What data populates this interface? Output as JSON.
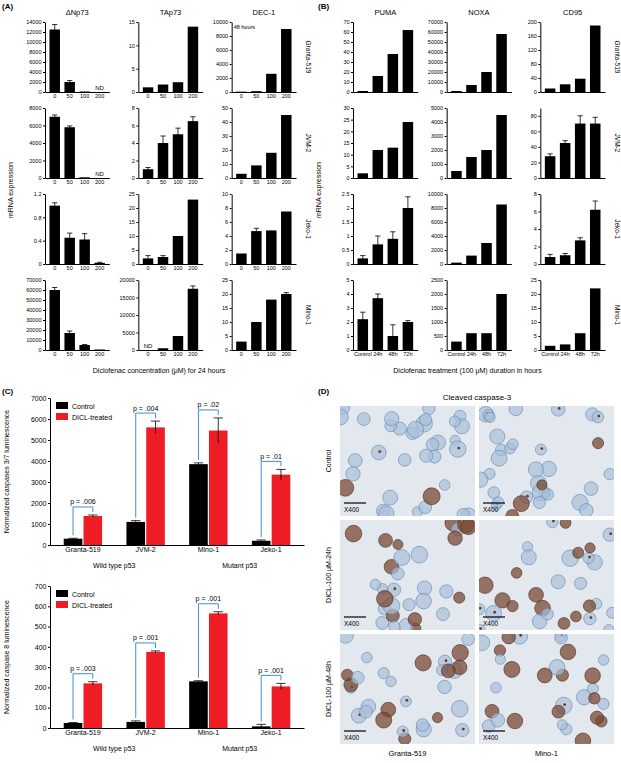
{
  "panel_labels": [
    "(A)",
    "(B)",
    "(C)",
    "(D)"
  ],
  "chart_data": [
    {
      "type": "bar_grid",
      "y_label": "mRNA expression",
      "x_label": "Diclofenac concentration (μM) for 24 hours",
      "categories": [
        "0",
        "50",
        "100",
        "200"
      ],
      "genes": [
        "ΔNp73",
        "TAp73",
        "DEC-1"
      ],
      "cell_lines": [
        "Granta-519",
        "JVM-2",
        "Jeko-1",
        "Mino-1"
      ],
      "color": "#000000",
      "charts": [
        {
          "values": [
            12500,
            2000,
            100,
            null
          ],
          "errors": [
            1000,
            300,
            null,
            null
          ],
          "ylim": [
            0,
            14000
          ],
          "yticks": [
            0,
            2000,
            4000,
            6000,
            8000,
            10000,
            12000,
            14000
          ],
          "annotations": [
            {
              "category": "200",
              "text": "ND"
            }
          ]
        },
        {
          "values": [
            1,
            1.6,
            2.1,
            14
          ],
          "ylim": [
            0,
            15
          ],
          "yticks": [
            0,
            5,
            10,
            15
          ]
        },
        {
          "values": [
            50,
            120,
            2600,
            9000
          ],
          "ylim": [
            0,
            10000
          ],
          "yticks": [
            0,
            2000,
            4000,
            6000,
            8000,
            10000
          ],
          "annotations": [
            {
              "text": "48 hours"
            }
          ]
        },
        {
          "values": [
            7000,
            5800,
            80,
            null
          ],
          "errors": [
            200,
            150,
            null,
            null
          ],
          "ylim": [
            0,
            8000
          ],
          "yticks": [
            0,
            2000,
            4000,
            6000,
            8000
          ],
          "annotations": [
            {
              "category": "200",
              "text": "ND"
            }
          ]
        },
        {
          "values": [
            1,
            4,
            5,
            6.5
          ],
          "errors": [
            0.2,
            0.8,
            0.7,
            0.5
          ],
          "ylim": [
            0,
            8
          ],
          "yticks": [
            0,
            2,
            4,
            6,
            8
          ]
        },
        {
          "values": [
            3,
            9,
            18,
            45
          ],
          "ylim": [
            0,
            50
          ],
          "yticks": [
            0,
            10,
            20,
            30,
            40,
            50
          ]
        },
        {
          "values": [
            1.0,
            0.45,
            0.42,
            0.02
          ],
          "errors": [
            0.05,
            0.08,
            0.1,
            0.01
          ],
          "ylim": [
            0,
            1.2
          ],
          "yticks": [
            0,
            0.4,
            0.8,
            1.2
          ]
        },
        {
          "values": [
            2,
            2.5,
            10,
            23
          ],
          "errors": [
            1,
            0.5,
            null,
            null
          ],
          "ylim": [
            0,
            25
          ],
          "yticks": [
            0,
            5,
            10,
            15,
            20,
            25
          ]
        },
        {
          "values": [
            1.5,
            4.7,
            4.8,
            7.5
          ],
          "errors": [
            null,
            0.4,
            null,
            null
          ],
          "ylim": [
            0,
            10
          ],
          "yticks": [
            0,
            2,
            4,
            6,
            8,
            10
          ]
        },
        {
          "values": [
            60000,
            17000,
            5000,
            500
          ],
          "errors": [
            2500,
            2000,
            500,
            null
          ],
          "ylim": [
            0,
            70000
          ],
          "yticks": [
            0,
            10000,
            20000,
            30000,
            40000,
            50000,
            60000,
            70000
          ]
        },
        {
          "values": [
            null,
            500,
            4000,
            17500
          ],
          "errors": [
            null,
            null,
            null,
            800
          ],
          "ylim": [
            0,
            20000
          ],
          "yticks": [
            0,
            5000,
            10000,
            15000,
            20000
          ],
          "annotations": [
            {
              "category": "0",
              "text": "ND"
            }
          ]
        },
        {
          "values": [
            3,
            10,
            18,
            20
          ],
          "errors": [
            null,
            null,
            null,
            0.5
          ],
          "ylim": [
            0,
            25
          ],
          "yticks": [
            0,
            5,
            10,
            15,
            20,
            25
          ]
        }
      ]
    },
    {
      "type": "bar_grid",
      "y_label": "mRNA expression",
      "x_label": "Diclofenac treatment (100 μM) duration in hours",
      "categories": [
        "Control",
        "24h",
        "48h",
        "72h"
      ],
      "genes": [
        "PUMA",
        "NOXA",
        "CD95"
      ],
      "cell_lines": [
        "Granta-519",
        "JVM-2",
        "Jeko-1",
        "Mino-1"
      ],
      "color": "#000000",
      "charts": [
        {
          "values": [
            1,
            16,
            38,
            62
          ],
          "ylim": [
            0,
            70
          ],
          "yticks": [
            0,
            10,
            20,
            30,
            40,
            50,
            60,
            70
          ],
          "tick_labels": "y"
        },
        {
          "values": [
            1000,
            7000,
            20000,
            58000
          ],
          "ylim": [
            0,
            70000
          ],
          "yticks": [
            0,
            10000,
            20000,
            30000,
            40000,
            50000,
            60000,
            70000
          ],
          "tick_labels": "y"
        },
        {
          "values": [
            10,
            22,
            38,
            190
          ],
          "ylim": [
            0,
            200
          ],
          "yticks": [
            0,
            40,
            80,
            120,
            160,
            200
          ],
          "tick_labels": "y"
        },
        {
          "values": [
            2,
            12,
            13,
            24
          ],
          "ylim": [
            0,
            30
          ],
          "yticks": [
            0,
            5,
            10,
            15,
            20,
            25,
            30
          ],
          "tick_labels": "y"
        },
        {
          "values": [
            500,
            1500,
            2000,
            4500
          ],
          "ylim": [
            0,
            5000
          ],
          "yticks": [
            0,
            1000,
            2000,
            3000,
            4000,
            5000
          ],
          "tick_labels": "y"
        },
        {
          "values": [
            28,
            45,
            70,
            70
          ],
          "errors": [
            3,
            3,
            10,
            8
          ],
          "ylim": [
            0,
            90
          ],
          "yticks": [
            0,
            20,
            40,
            60,
            80
          ],
          "tick_labels": "y"
        },
        {
          "values": [
            0.2,
            0.7,
            0.9,
            2.0
          ],
          "errors": [
            0.1,
            0.3,
            0.25,
            0.4
          ],
          "ylim": [
            0,
            2.5
          ],
          "yticks": [
            0,
            0.5,
            1,
            1.5,
            2,
            2.5
          ],
          "tick_labels": "y"
        },
        {
          "values": [
            200,
            1200,
            3000,
            8500
          ],
          "ylim": [
            0,
            10000
          ],
          "yticks": [
            0,
            2000,
            4000,
            6000,
            8000,
            10000
          ],
          "tick_labels": "y"
        },
        {
          "values": [
            0.8,
            1.0,
            2.7,
            6.2
          ],
          "errors": [
            0.3,
            0.2,
            0.3,
            1.0
          ],
          "ylim": [
            0,
            8
          ],
          "yticks": [
            0,
            2,
            4,
            6,
            8
          ],
          "tick_labels": "y"
        },
        {
          "values": [
            2.2,
            3.7,
            1.0,
            2.0
          ],
          "errors": [
            0.5,
            0.3,
            0.8,
            0.1
          ],
          "ylim": [
            0,
            5
          ],
          "yticks": [
            0,
            1,
            2,
            3,
            4,
            5
          ]
        },
        {
          "values": [
            300,
            600,
            600,
            2000
          ],
          "ylim": [
            0,
            2500
          ],
          "yticks": [
            0,
            500,
            1000,
            1500,
            2000,
            2500
          ]
        },
        {
          "values": [
            1.5,
            2.0,
            6,
            22
          ],
          "ylim": [
            0,
            25
          ],
          "yticks": [
            0,
            5,
            10,
            15,
            20,
            25
          ]
        }
      ]
    },
    {
      "type": "bar",
      "y_label": "Normalized caspases 3/7 luminescence",
      "categories": [
        "Granta-519",
        "JVM-2",
        "Mino-1",
        "Jeko-1"
      ],
      "groups": [
        {
          "label": "Wild type p53",
          "categories": [
            0,
            1
          ]
        },
        {
          "label": "Mutant p53",
          "categories": [
            2,
            3
          ]
        }
      ],
      "series": [
        {
          "name": "Control",
          "color": "#000000",
          "values": [
            300,
            1100,
            3850,
            200
          ],
          "errors": [
            20,
            60,
            60,
            40
          ]
        },
        {
          "name": "DICL-treated",
          "color": "#ee1c25",
          "values": [
            1380,
            5600,
            5450,
            3350
          ],
          "errors": [
            50,
            300,
            600,
            250
          ]
        }
      ],
      "p_values": [
        "p = .006",
        "p = .004",
        "p = .02",
        "p = .01"
      ],
      "ylim": [
        0,
        7000
      ],
      "yticks": [
        0,
        1000,
        2000,
        3000,
        4000,
        5000,
        6000,
        7000
      ],
      "legend": "top-left"
    },
    {
      "type": "bar",
      "y_label": "Normalized caspase 8 luminescence",
      "categories": [
        "Granta-519",
        "JVM-2",
        "Mino-1",
        "Jeko-1"
      ],
      "groups": [
        {
          "label": "Wild type p53",
          "categories": [
            0,
            1
          ]
        },
        {
          "label": "Mutant p53",
          "categories": [
            2,
            3
          ]
        }
      ],
      "series": [
        {
          "name": "Control",
          "color": "#000000",
          "values": [
            25,
            30,
            230,
            8
          ],
          "errors": [
            2,
            5,
            3,
            10
          ]
        },
        {
          "name": "DICL-treated",
          "color": "#ee1c25",
          "values": [
            220,
            375,
            565,
            205
          ],
          "errors": [
            8,
            5,
            8,
            15
          ]
        }
      ],
      "p_values": [
        "p = .003",
        "p = .001",
        "p = .001",
        "p = .001"
      ],
      "ylim": [
        0,
        700
      ],
      "yticks": [
        0,
        100,
        200,
        300,
        400,
        500,
        600,
        700
      ],
      "legend": "top-left"
    }
  ],
  "micrographs": {
    "title": "Cleaved caspase-3",
    "rows": [
      "Control",
      "DICL-100 μM-24h",
      "DICL-100 μM-48h"
    ],
    "columns": [
      "Granta-519",
      "Mino-1"
    ],
    "magnification": "X400"
  }
}
